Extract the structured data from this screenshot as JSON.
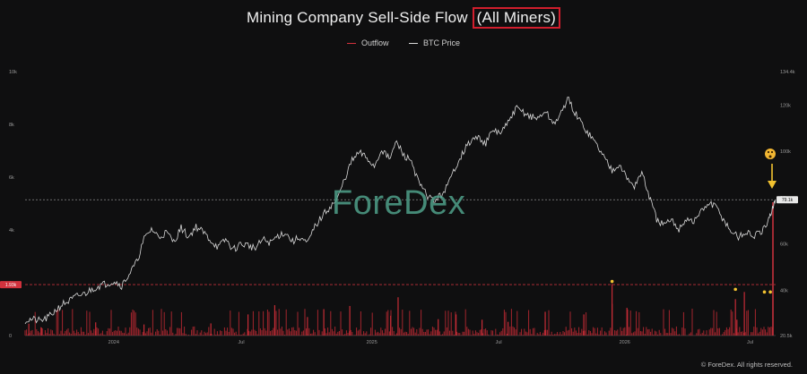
{
  "chart_data": {
    "type": "line",
    "title_main": "Mining Company Sell-Side Flow",
    "title_highlight": "(All Miners)",
    "legend": [
      {
        "name": "Outflow",
        "color": "#d1323d"
      },
      {
        "name": "BTC Price",
        "color": "#d9d9d9"
      }
    ],
    "y_left": {
      "ticks": [
        0,
        2000,
        4000,
        6000,
        8000,
        10000
      ],
      "tick_labels": [
        "0",
        "2k",
        "4k",
        "6k",
        "8k",
        "10k"
      ],
      "range": [
        0,
        10000
      ]
    },
    "y_right": {
      "ticks": [
        20500,
        40000,
        60000,
        80000,
        100000,
        120000,
        134400
      ],
      "tick_labels": [
        "20.5k",
        "40k",
        "60k",
        "80k",
        "100k",
        "120k",
        "134.4k"
      ],
      "range": [
        20500,
        134400
      ]
    },
    "x_ticks": [
      "2024",
      "Jul",
      "2025",
      "Jul",
      "2026",
      "Jul"
    ],
    "x_tick_pos": [
      0.118,
      0.288,
      0.462,
      0.631,
      0.799,
      0.966
    ],
    "threshold": {
      "label": "1.93k",
      "value": 1930
    },
    "current_price": {
      "label": "79.1k",
      "value": 79100
    },
    "btc_price": [
      [
        0.0,
        27000
      ],
      [
        0.01,
        27500
      ],
      [
        0.02,
        26800
      ],
      [
        0.03,
        28000
      ],
      [
        0.04,
        31000
      ],
      [
        0.05,
        34000
      ],
      [
        0.06,
        35500
      ],
      [
        0.07,
        37500
      ],
      [
        0.08,
        38500
      ],
      [
        0.09,
        40500
      ],
      [
        0.1,
        42000
      ],
      [
        0.11,
        43000
      ],
      [
        0.12,
        44000
      ],
      [
        0.13,
        42000
      ],
      [
        0.14,
        47000
      ],
      [
        0.15,
        52000
      ],
      [
        0.16,
        62000
      ],
      [
        0.17,
        66500
      ],
      [
        0.18,
        63000
      ],
      [
        0.19,
        65000
      ],
      [
        0.2,
        61000
      ],
      [
        0.21,
        67000
      ],
      [
        0.22,
        63000
      ],
      [
        0.23,
        67500
      ],
      [
        0.24,
        65000
      ],
      [
        0.25,
        61500
      ],
      [
        0.26,
        58500
      ],
      [
        0.27,
        62000
      ],
      [
        0.28,
        57500
      ],
      [
        0.29,
        60000
      ],
      [
        0.3,
        59500
      ],
      [
        0.31,
        58000
      ],
      [
        0.32,
        62000
      ],
      [
        0.33,
        60500
      ],
      [
        0.34,
        63500
      ],
      [
        0.35,
        65000
      ],
      [
        0.36,
        61000
      ],
      [
        0.37,
        63000
      ],
      [
        0.38,
        60000
      ],
      [
        0.39,
        67500
      ],
      [
        0.4,
        72000
      ],
      [
        0.41,
        76000
      ],
      [
        0.42,
        79000
      ],
      [
        0.43,
        88000
      ],
      [
        0.44,
        96000
      ],
      [
        0.45,
        99500
      ],
      [
        0.46,
        97000
      ],
      [
        0.47,
        93500
      ],
      [
        0.48,
        101000
      ],
      [
        0.49,
        96500
      ],
      [
        0.5,
        104000
      ],
      [
        0.51,
        98000
      ],
      [
        0.52,
        96000
      ],
      [
        0.53,
        86000
      ],
      [
        0.54,
        81500
      ],
      [
        0.55,
        78500
      ],
      [
        0.56,
        81000
      ],
      [
        0.57,
        86000
      ],
      [
        0.58,
        94000
      ],
      [
        0.59,
        100000
      ],
      [
        0.6,
        104500
      ],
      [
        0.61,
        106000
      ],
      [
        0.62,
        103500
      ],
      [
        0.63,
        109000
      ],
      [
        0.64,
        108000
      ],
      [
        0.65,
        112000
      ],
      [
        0.66,
        118500
      ],
      [
        0.67,
        117000
      ],
      [
        0.68,
        115000
      ],
      [
        0.69,
        114000
      ],
      [
        0.7,
        117500
      ],
      [
        0.71,
        112000
      ],
      [
        0.72,
        115000
      ],
      [
        0.73,
        123000
      ],
      [
        0.74,
        116500
      ],
      [
        0.75,
        111500
      ],
      [
        0.76,
        107000
      ],
      [
        0.77,
        102500
      ],
      [
        0.78,
        97000
      ],
      [
        0.79,
        92000
      ],
      [
        0.8,
        95000
      ],
      [
        0.81,
        88000
      ],
      [
        0.82,
        85000
      ],
      [
        0.83,
        91000
      ],
      [
        0.84,
        80500
      ],
      [
        0.85,
        70500
      ],
      [
        0.86,
        68000
      ],
      [
        0.87,
        70000
      ],
      [
        0.88,
        66500
      ],
      [
        0.89,
        71000
      ],
      [
        0.9,
        69500
      ],
      [
        0.91,
        74000
      ],
      [
        0.92,
        77500
      ],
      [
        0.93,
        76000
      ],
      [
        0.94,
        70500
      ],
      [
        0.95,
        65500
      ],
      [
        0.96,
        63000
      ],
      [
        0.97,
        65000
      ],
      [
        0.98,
        63500
      ],
      [
        0.99,
        64500
      ],
      [
        1.0,
        69000
      ],
      [
        1.005,
        75000
      ],
      [
        1.01,
        79100
      ]
    ],
    "outflow_spikes": [
      [
        0.79,
        1950
      ],
      [
        0.79,
        1200
      ],
      [
        0.502,
        1450
      ],
      [
        0.437,
        1120
      ],
      [
        0.956,
        1380
      ],
      [
        0.968,
        1650
      ],
      [
        0.958,
        600
      ],
      [
        0.7,
        900
      ],
      [
        0.752,
        800
      ],
      [
        0.81,
        1050
      ],
      [
        0.65,
        520
      ],
      [
        0.615,
        600
      ],
      [
        0.38,
        700
      ],
      [
        0.25,
        460
      ],
      [
        0.3,
        800
      ],
      [
        0.556,
        620
      ],
      [
        0.58,
        800
      ],
      [
        0.402,
        1000
      ],
      [
        0.492,
        750
      ],
      [
        0.336,
        1150
      ],
      [
        0.095,
        500
      ],
      [
        0.16,
        420
      ],
      [
        0.005,
        450
      ],
      [
        0.022,
        300
      ]
    ],
    "highlighted_points": [
      [
        0.79,
        2050
      ],
      [
        0.956,
        1750
      ],
      [
        0.995,
        1650
      ],
      [
        1.003,
        1650
      ]
    ],
    "watermark": "ForeDex",
    "footer": "© ForeDex. All rights reserved."
  }
}
